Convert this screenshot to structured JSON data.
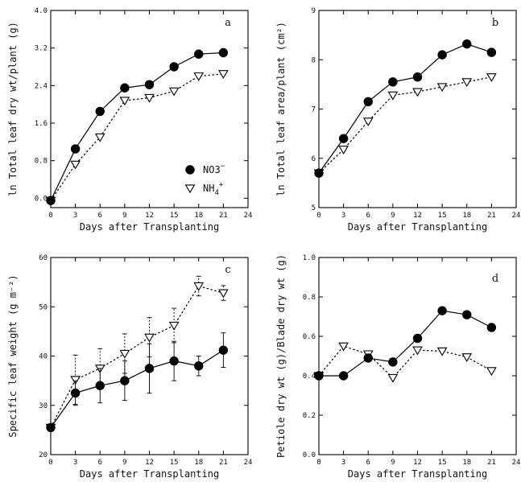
{
  "figure": {
    "legend": {
      "items": [
        {
          "label": "NO3",
          "sup": "−",
          "sub": "",
          "marker": "filled-circle"
        },
        {
          "label": "NH",
          "sup": "+",
          "sub": "4",
          "marker": "open-triangle-down"
        }
      ]
    }
  },
  "chart_data": [
    {
      "id": "a",
      "type": "line",
      "panel_letter": "a",
      "title": "",
      "xlabel": "Days after Transplanting",
      "ylabel": "ln Total leaf dry wt/plant (g)",
      "x": [
        0,
        3,
        6,
        9,
        12,
        15,
        18,
        21
      ],
      "xlim": [
        0,
        24
      ],
      "xticks": [
        "0",
        "3",
        "6",
        "9",
        "12",
        "15",
        "18",
        "21",
        "24"
      ],
      "ylim": [
        -0.2,
        4.0
      ],
      "yticks": [
        "0.0",
        "0.8",
        "1.6",
        "2.4",
        "3.2",
        "4.0"
      ],
      "ytick_values": [
        0,
        0.8,
        1.6,
        2.4,
        3.2,
        4.0
      ],
      "series": [
        {
          "name": "NO3−",
          "marker": "filled-circle",
          "line": "solid",
          "values": [
            -0.05,
            1.05,
            1.85,
            2.35,
            2.42,
            2.8,
            3.07,
            3.1
          ]
        },
        {
          "name": "NH4+",
          "marker": "open-triangle-down",
          "line": "dotted",
          "values": [
            -0.05,
            0.72,
            1.3,
            2.08,
            2.14,
            2.28,
            2.6,
            2.65
          ]
        }
      ],
      "grid": false
    },
    {
      "id": "b",
      "type": "line",
      "panel_letter": "b",
      "title": "",
      "xlabel": "Days after Transplanting",
      "ylabel": "ln Total leaf area/plant (cm²)",
      "x": [
        0,
        3,
        6,
        9,
        12,
        15,
        18,
        21
      ],
      "xlim": [
        0,
        24
      ],
      "xticks": [
        "0",
        "3",
        "6",
        "9",
        "12",
        "15",
        "18",
        "21",
        "24"
      ],
      "ylim": [
        5,
        9
      ],
      "yticks": [
        "5",
        "6",
        "7",
        "8",
        "9"
      ],
      "ytick_values": [
        5,
        6,
        7,
        8,
        9
      ],
      "series": [
        {
          "name": "NO3−",
          "marker": "filled-circle",
          "line": "solid",
          "values": [
            5.7,
            6.4,
            7.15,
            7.55,
            7.65,
            8.1,
            8.32,
            8.15
          ]
        },
        {
          "name": "NH4+",
          "marker": "open-triangle-down",
          "line": "dotted",
          "values": [
            5.7,
            6.18,
            6.75,
            7.28,
            7.35,
            7.45,
            7.55,
            7.65
          ]
        }
      ],
      "grid": false
    },
    {
      "id": "c",
      "type": "line",
      "panel_letter": "c",
      "title": "",
      "xlabel": "Days after Transplanting",
      "ylabel": "Specific leaf weight (g m⁻²)",
      "x": [
        0,
        3,
        6,
        9,
        12,
        15,
        18,
        21
      ],
      "xlim": [
        0,
        24
      ],
      "xticks": [
        "0",
        "3",
        "6",
        "9",
        "12",
        "15",
        "18",
        "21",
        "24"
      ],
      "ylim": [
        20,
        60
      ],
      "yticks": [
        "20",
        "30",
        "40",
        "50",
        "60"
      ],
      "ytick_values": [
        20,
        30,
        40,
        50,
        60
      ],
      "series": [
        {
          "name": "NO3−",
          "marker": "filled-circle",
          "line": "solid",
          "values": [
            25.5,
            32.5,
            34,
            35,
            37.5,
            39,
            38,
            41.2
          ],
          "errors": [
            0.5,
            2.5,
            3.5,
            4,
            5,
            4,
            2,
            3.5
          ]
        },
        {
          "name": "NH4+",
          "marker": "open-triangle-down",
          "line": "dotted",
          "values": [
            25.5,
            35.2,
            37.5,
            40.5,
            43.8,
            46.2,
            54.2,
            52.8
          ],
          "errors": [
            0.5,
            5,
            4,
            4,
            4,
            3.5,
            2,
            1.5
          ]
        }
      ],
      "grid": false
    },
    {
      "id": "d",
      "type": "line",
      "panel_letter": "d",
      "title": "",
      "xlabel": "Days after Transplanting",
      "ylabel": "Petiole dry wt (g)/Blade dry wt (g)",
      "x": [
        0,
        3,
        6,
        9,
        12,
        15,
        18,
        21
      ],
      "xlim": [
        0,
        24
      ],
      "xticks": [
        "0",
        "3",
        "6",
        "9",
        "12",
        "15",
        "18",
        "21",
        "24"
      ],
      "ylim": [
        0.0,
        1.0
      ],
      "yticks": [
        "0.0",
        "0.2",
        "0.4",
        "0.6",
        "0.8",
        "1.0"
      ],
      "ytick_values": [
        0,
        0.2,
        0.4,
        0.6,
        0.8,
        1.0
      ],
      "series": [
        {
          "name": "NO3−",
          "marker": "filled-circle",
          "line": "solid",
          "values": [
            0.4,
            0.4,
            0.49,
            0.47,
            0.59,
            0.73,
            0.71,
            0.645
          ]
        },
        {
          "name": "NH4+",
          "marker": "open-triangle-down",
          "line": "dotted",
          "values": [
            0.4,
            0.55,
            0.51,
            0.39,
            0.53,
            0.525,
            0.495,
            0.425
          ]
        }
      ],
      "grid": false
    }
  ]
}
